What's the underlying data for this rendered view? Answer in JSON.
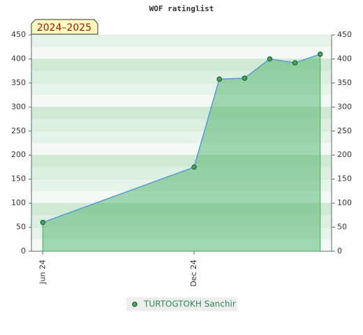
{
  "chart_data": {
    "type": "area",
    "title": "WOF ratinglist",
    "badge": "2024–2025",
    "x": [
      "2024-06",
      "2024-12",
      "2025-01",
      "2025-02",
      "2025-03",
      "2025-04",
      "2025-05"
    ],
    "xlim": [
      "2024-06",
      "2025-05"
    ],
    "xticks": [
      {
        "value": "2024-06",
        "label": "Jun 24"
      },
      {
        "value": "2024-12",
        "label": "Dec 24"
      }
    ],
    "series": [
      {
        "name": "TURTOGTOKH Sanchir",
        "color": "#3cab5a",
        "values": [
          60,
          175,
          358,
          360,
          400,
          392,
          410
        ]
      }
    ],
    "ylim": [
      0,
      450
    ],
    "yticks": [
      0,
      50,
      100,
      150,
      200,
      250,
      300,
      350,
      400,
      450
    ],
    "grid": true,
    "legend": "bottom"
  }
}
